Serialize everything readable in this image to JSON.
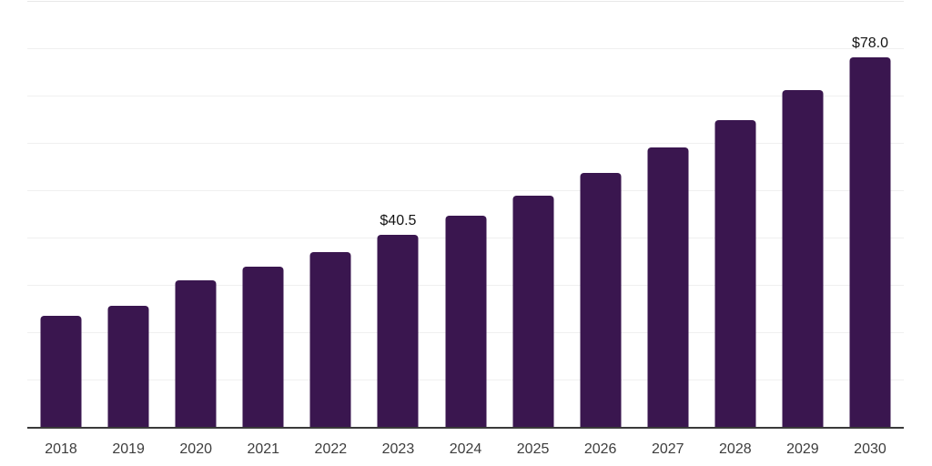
{
  "colors": {
    "background": "#ffffff",
    "bar": "#3A164F",
    "gridline": "#f0f0f0",
    "gridline_top": "#e8e8e8",
    "axis_line": "#3a3a3a",
    "tick_label": "#3d3d3d",
    "value_label": "#141414"
  },
  "chart_data": {
    "type": "bar",
    "title": "",
    "xlabel": "",
    "ylabel": "",
    "categories": [
      "2018",
      "2019",
      "2020",
      "2021",
      "2022",
      "2023",
      "2024",
      "2025",
      "2026",
      "2027",
      "2028",
      "2029",
      "2030"
    ],
    "values": [
      23.5,
      25.6,
      31.0,
      33.9,
      36.9,
      40.5,
      44.6,
      48.9,
      53.6,
      59.0,
      64.8,
      71.2,
      78.0
    ],
    "value_prefix": "$",
    "labeled_points": [
      {
        "category": "2023",
        "label": "$40.5"
      },
      {
        "category": "2030",
        "label": "$78.0"
      }
    ],
    "ylim": [
      0,
      90
    ],
    "gridline_interval": 10,
    "grid": true,
    "y_axis_labels_visible": false,
    "legend_position": "none"
  }
}
